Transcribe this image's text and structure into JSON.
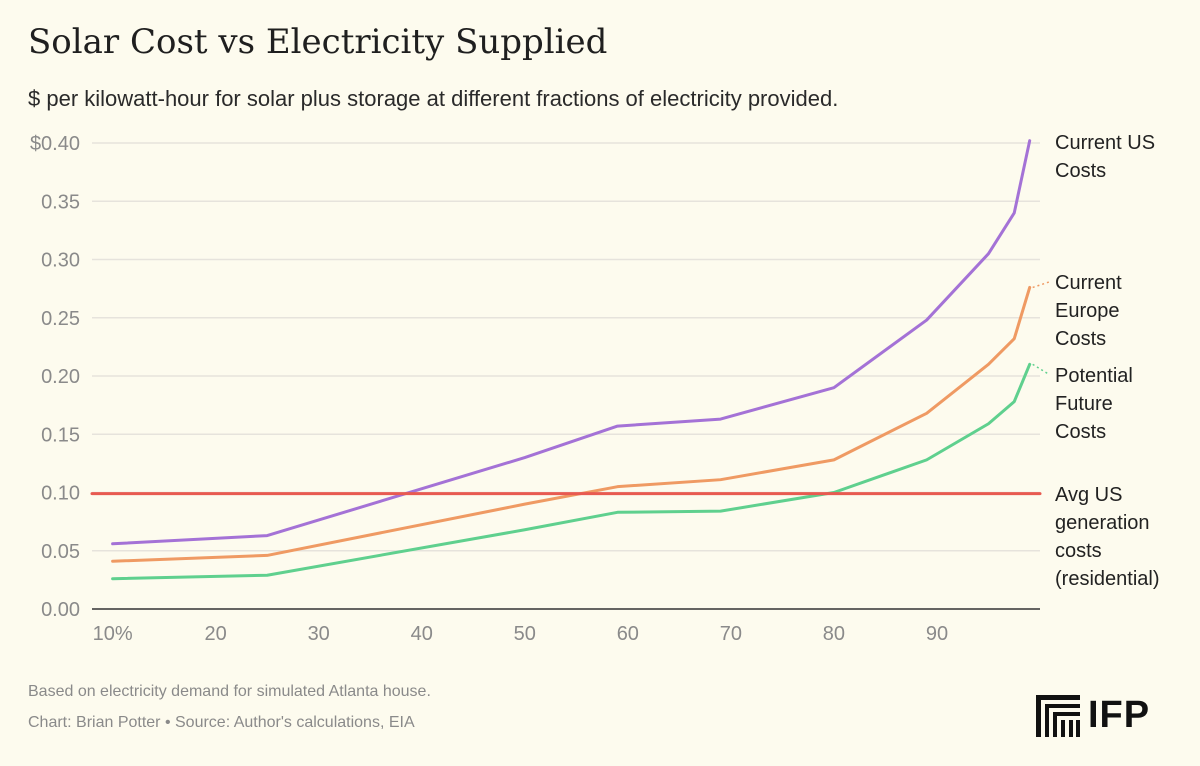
{
  "title": "Solar Cost vs Electricity Supplied",
  "subtitle": "$ per kilowatt-hour for solar plus storage at different fractions of electricity provided.",
  "footer": {
    "note": "Based on electricity demand for simulated Atlanta house.",
    "credit": "Chart: Brian Potter • Source: Author's calculations, EIA"
  },
  "logo": {
    "text": "IFP"
  },
  "colors": {
    "background": "#fdfbee",
    "grid": "#e6e3dc",
    "axis": "#333333",
    "us": "#a472d6",
    "europe": "#ef9a63",
    "future": "#5fd08e",
    "avg": "#e85a50"
  },
  "chart_data": {
    "type": "line",
    "title": "Solar Cost vs Electricity Supplied",
    "xlabel": "",
    "ylabel": "",
    "xlim": [
      8,
      100
    ],
    "ylim": [
      0,
      0.4
    ],
    "x_ticks": [
      10,
      20,
      30,
      40,
      50,
      60,
      70,
      80,
      90
    ],
    "x_tick_labels": [
      "10%",
      "20",
      "30",
      "40",
      "50",
      "60",
      "70",
      "80",
      "90"
    ],
    "y_ticks": [
      0,
      0.05,
      0.1,
      0.15,
      0.2,
      0.25,
      0.3,
      0.35,
      0.4
    ],
    "y_tick_labels": [
      "0.00",
      "0.05",
      "0.10",
      "0.15",
      "0.20",
      "0.25",
      "0.30",
      "0.35",
      "$0.40"
    ],
    "series": [
      {
        "name": "Current US Costs",
        "label_lines": [
          "Current US",
          "Costs"
        ],
        "color_key": "us",
        "x": [
          10,
          25,
          50,
          59,
          69,
          80,
          89,
          95,
          97.5,
          99
        ],
        "y": [
          0.056,
          0.063,
          0.13,
          0.157,
          0.163,
          0.19,
          0.248,
          0.305,
          0.34,
          0.402
        ]
      },
      {
        "name": "Current Europe Costs",
        "label_lines": [
          "Current",
          "Europe",
          "Costs"
        ],
        "color_key": "europe",
        "x": [
          10,
          25,
          50,
          59,
          69,
          80,
          89,
          95,
          97.5,
          99
        ],
        "y": [
          0.041,
          0.046,
          0.09,
          0.105,
          0.111,
          0.128,
          0.168,
          0.21,
          0.232,
          0.276
        ]
      },
      {
        "name": "Potential Future Costs",
        "label_lines": [
          "Potential",
          "Future",
          "Costs"
        ],
        "color_key": "future",
        "x": [
          10,
          25,
          50,
          59,
          69,
          80,
          89,
          95,
          97.5,
          99
        ],
        "y": [
          0.026,
          0.029,
          0.068,
          0.083,
          0.084,
          0.1,
          0.128,
          0.159,
          0.178,
          0.21
        ]
      },
      {
        "name": "Avg US generation costs (residential)",
        "label_lines": [
          "Avg US",
          "generation",
          "costs",
          "(residential)"
        ],
        "color_key": "avg",
        "x": [
          8,
          100
        ],
        "y": [
          0.099,
          0.099
        ]
      }
    ]
  }
}
